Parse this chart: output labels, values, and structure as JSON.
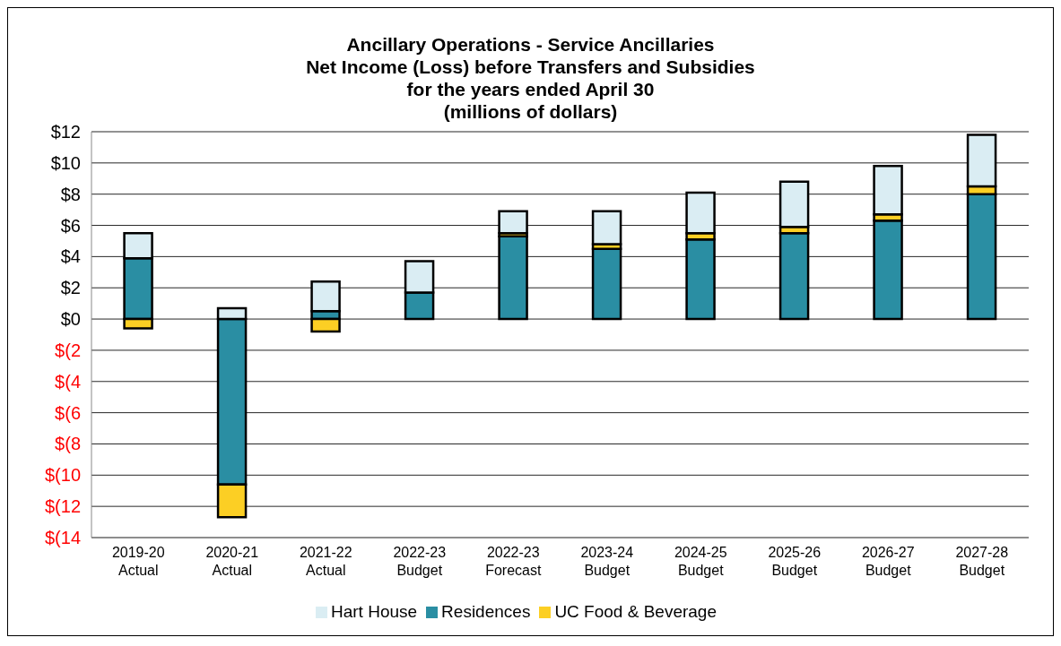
{
  "chart_data": {
    "type": "bar",
    "title": "Ancillary Operations - Service Ancillaries\nNet Income (Loss) before Transfers and Subsidies\nfor the years ended April 30\n(millions of dollars)",
    "categories": [
      "2019-20\nActual",
      "2020-21\nActual",
      "2021-22\nActual",
      "2022-23\nBudget",
      "2022-23\nForecast",
      "2023-24\nBudget",
      "2024-25\nBudget",
      "2025-26\nBudget",
      "2026-27\nBudget",
      "2027-28\nBudget"
    ],
    "stacked": true,
    "series": [
      {
        "name": "Residences",
        "color": "#2a8ea3",
        "values": [
          3.9,
          -10.6,
          0.5,
          1.7,
          5.3,
          4.5,
          5.1,
          5.5,
          6.3,
          8.0
        ]
      },
      {
        "name": "UC Food & Beverage",
        "color": "#fccf24",
        "values": [
          -0.6,
          -2.1,
          -0.8,
          0,
          0.2,
          0.3,
          0.4,
          0.4,
          0.4,
          0.5
        ]
      },
      {
        "name": "Hart House",
        "color": "#daedf3",
        "values": [
          1.6,
          0.7,
          1.9,
          2.0,
          1.4,
          2.1,
          2.6,
          2.9,
          3.1,
          3.3
        ]
      }
    ],
    "ylim": [
      -14,
      12
    ],
    "yticks": [
      {
        "value": 12,
        "label": "$12"
      },
      {
        "value": 10,
        "label": "$10"
      },
      {
        "value": 8,
        "label": "$8"
      },
      {
        "value": 6,
        "label": "$6"
      },
      {
        "value": 4,
        "label": "$4"
      },
      {
        "value": 2,
        "label": "$2"
      },
      {
        "value": 0,
        "label": "$0"
      },
      {
        "value": -2,
        "label": "$(2"
      },
      {
        "value": -4,
        "label": "$(4"
      },
      {
        "value": -6,
        "label": "$(6"
      },
      {
        "value": -8,
        "label": "$(8"
      },
      {
        "value": -10,
        "label": "$(10"
      },
      {
        "value": -12,
        "label": "$(12"
      },
      {
        "value": -14,
        "label": "$(14"
      }
    ],
    "grid": "y",
    "legend": "bottom"
  }
}
